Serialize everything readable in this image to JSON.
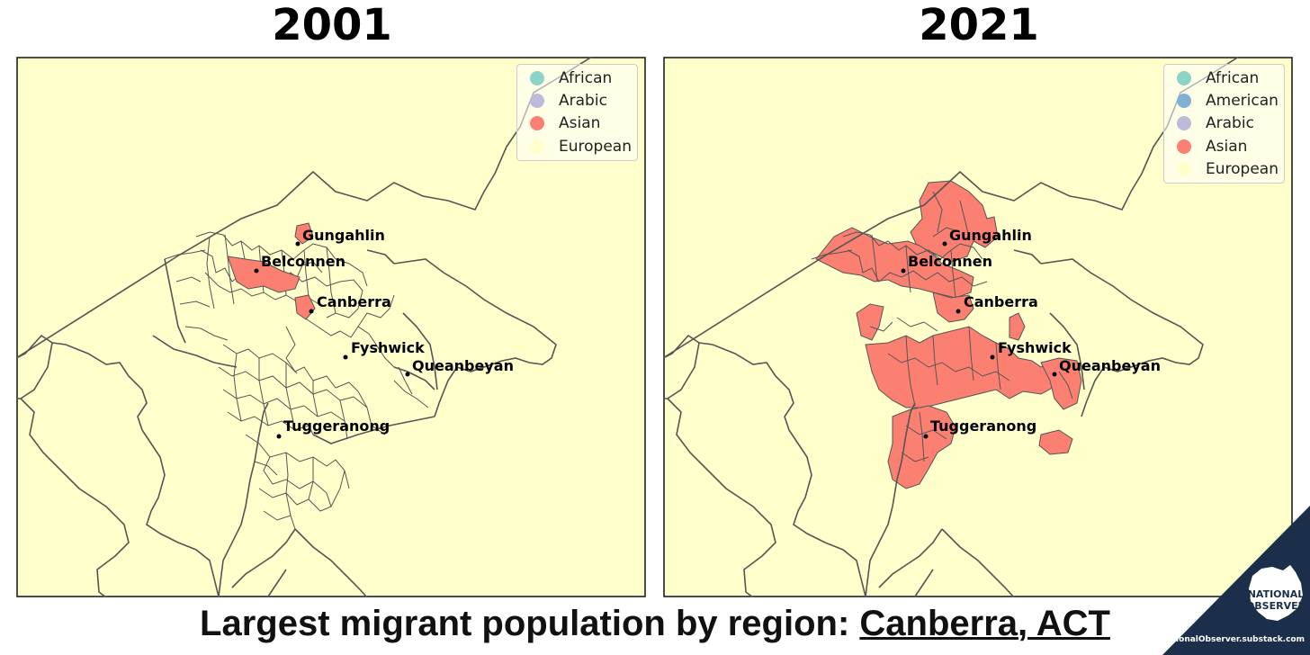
{
  "maps": [
    {
      "year": "2001",
      "legend": [
        {
          "label": "African",
          "color": "#8dd3c7"
        },
        {
          "label": "Arabic",
          "color": "#bebada"
        },
        {
          "label": "Asian",
          "color": "#fb8072"
        },
        {
          "label": "European",
          "color": "#ffffcc"
        }
      ],
      "cities": [
        {
          "name": "Gungahlin"
        },
        {
          "name": "Belconnen"
        },
        {
          "name": "Canberra"
        },
        {
          "name": "Fyshwick"
        },
        {
          "name": "Queanbeyan"
        },
        {
          "name": "Tuggeranong"
        }
      ],
      "asian_regions": [
        "Belconnen",
        "Gungahlin",
        "Canberra"
      ]
    },
    {
      "year": "2021",
      "legend": [
        {
          "label": "African",
          "color": "#8dd3c7"
        },
        {
          "label": "American",
          "color": "#80b1d3"
        },
        {
          "label": "Arabic",
          "color": "#bebada"
        },
        {
          "label": "Asian",
          "color": "#fb8072"
        },
        {
          "label": "European",
          "color": "#ffffcc"
        }
      ],
      "cities": [
        {
          "name": "Gungahlin"
        },
        {
          "name": "Belconnen"
        },
        {
          "name": "Canberra"
        },
        {
          "name": "Fyshwick"
        },
        {
          "name": "Queanbeyan"
        },
        {
          "name": "Tuggeranong"
        }
      ],
      "asian_regions": [
        "Gungahlin",
        "Belconnen",
        "Canberra",
        "Fyshwick",
        "Queanbeyan",
        "Tuggeranong"
      ]
    }
  ],
  "footer": {
    "prefix": "Largest migrant population by region: ",
    "place": "Canberra, ACT"
  },
  "brand": {
    "logo_line1": "NATIONAL",
    "logo_line2": "OBSERVER",
    "url": "NationalObserver.substack.com",
    "corner_color": "#1c2f4a"
  },
  "colors": {
    "background": "#ffffcc",
    "border": "#555555",
    "asian": "#fb8072"
  }
}
